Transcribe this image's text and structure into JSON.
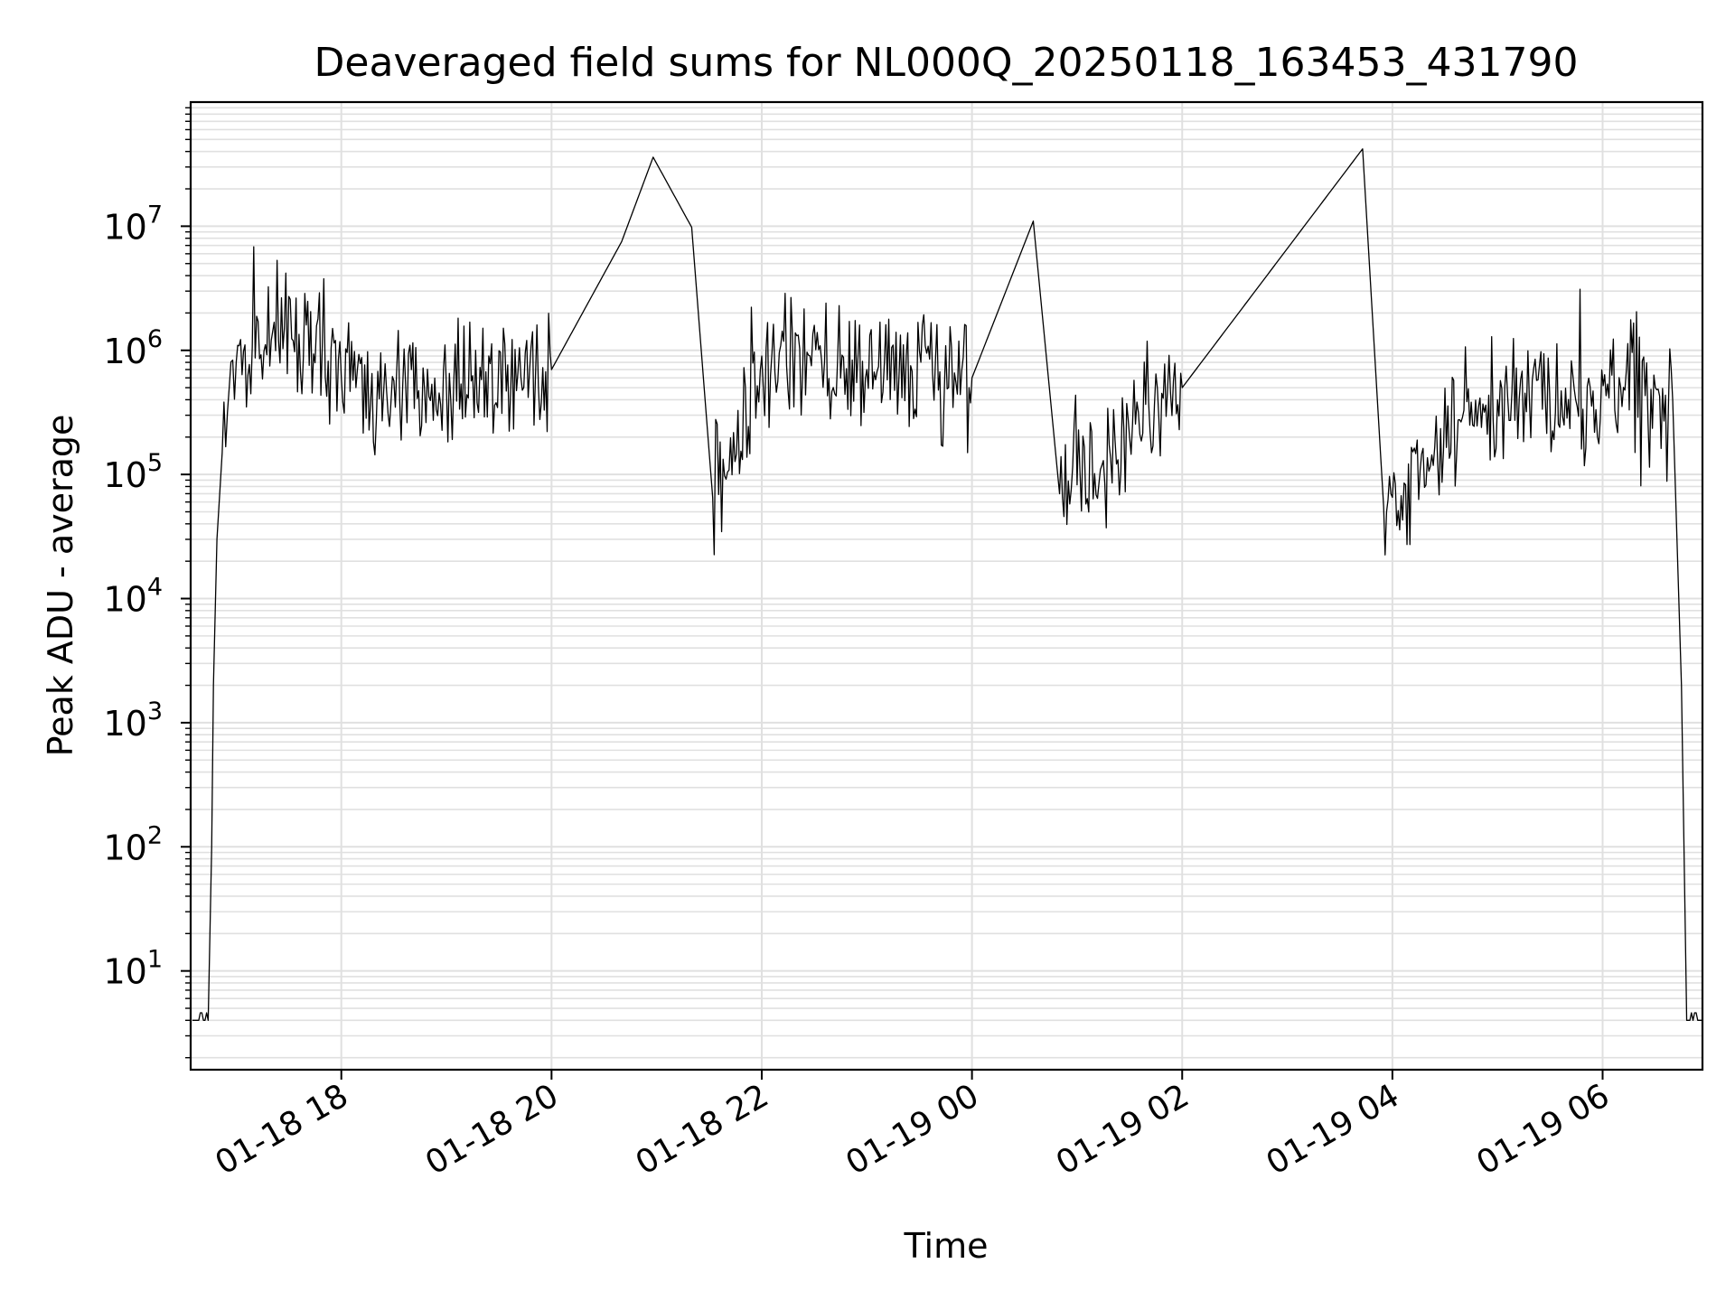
{
  "chart_data": {
    "type": "line",
    "title": "Deaveraged field sums for NL000Q_20250118_163453_431790",
    "xlabel": "Time",
    "ylabel": "Peak ADU - average",
    "x_tick_labels": [
      "01-18 18",
      "01-18 20",
      "01-18 22",
      "01-19 00",
      "01-19 02",
      "01-19 04",
      "01-19 06"
    ],
    "x_ticks": [
      "2025-01-18 18:00",
      "2025-01-18 20:00",
      "2025-01-18 22:00",
      "2025-01-19 00:00",
      "2025-01-19 02:00",
      "2025-01-19 04:00",
      "2025-01-19 06:00"
    ],
    "xlim": [
      "2025-01-18 16:34",
      "2025-01-19 06:57"
    ],
    "yscale": "log",
    "ylim": [
      1.6,
      100000000
    ],
    "y_ticks": [
      {
        "value": 10,
        "base": "10",
        "exp": "1"
      },
      {
        "value": 100,
        "base": "10",
        "exp": "2"
      },
      {
        "value": 1000,
        "base": "10",
        "exp": "3"
      },
      {
        "value": 10000,
        "base": "10",
        "exp": "4"
      },
      {
        "value": 100000,
        "base": "10",
        "exp": "5"
      },
      {
        "value": 1000000,
        "base": "10",
        "exp": "6"
      },
      {
        "value": 10000000,
        "base": "10",
        "exp": "7"
      }
    ],
    "grid": true,
    "line_color": "#000000",
    "grid_color": "#e0e0e0",
    "series": [
      {
        "points": [
          [
            "2025-01-18 16:35",
            4
          ],
          [
            "2025-01-18 16:44",
            4
          ],
          [
            "2025-01-18 16:46",
            100
          ],
          [
            "2025-01-18 16:47",
            2000
          ],
          [
            "2025-01-18 16:49",
            30000
          ],
          [
            "2025-01-18 16:52",
            150000
          ],
          [
            "2025-01-18 16:56",
            500000
          ],
          [
            "2025-01-18 17:00",
            800000
          ],
          [
            "2025-01-18 17:20",
            1200000
          ],
          [
            "2025-01-18 17:40",
            1600000
          ],
          [
            "2025-01-18 18:00",
            600000
          ],
          [
            "2025-01-18 19:00",
            500000
          ],
          [
            "2025-01-18 20:00",
            700000
          ],
          [
            "2025-01-18 20:40",
            7500000
          ],
          [
            "2025-01-18 20:58",
            36000000
          ],
          [
            "2025-01-18 21:20",
            9800000
          ],
          [
            "2025-01-18 21:32",
            65000
          ],
          [
            "2025-01-18 22:00",
            900000
          ],
          [
            "2025-01-18 23:00",
            700000
          ],
          [
            "2025-01-19 00:00",
            600000
          ],
          [
            "2025-01-19 00:35",
            11000000
          ],
          [
            "2025-01-19 00:50",
            70000
          ],
          [
            "2025-01-19 02:00",
            500000
          ],
          [
            "2025-01-19 03:43",
            42000000
          ],
          [
            "2025-01-19 03:55",
            55000
          ],
          [
            "2025-01-19 05:00",
            400000
          ],
          [
            "2025-01-19 06:40",
            400000
          ],
          [
            "2025-01-19 06:45",
            2000
          ],
          [
            "2025-01-19 06:48",
            4
          ],
          [
            "2025-01-19 06:57",
            4
          ]
        ]
      }
    ]
  }
}
